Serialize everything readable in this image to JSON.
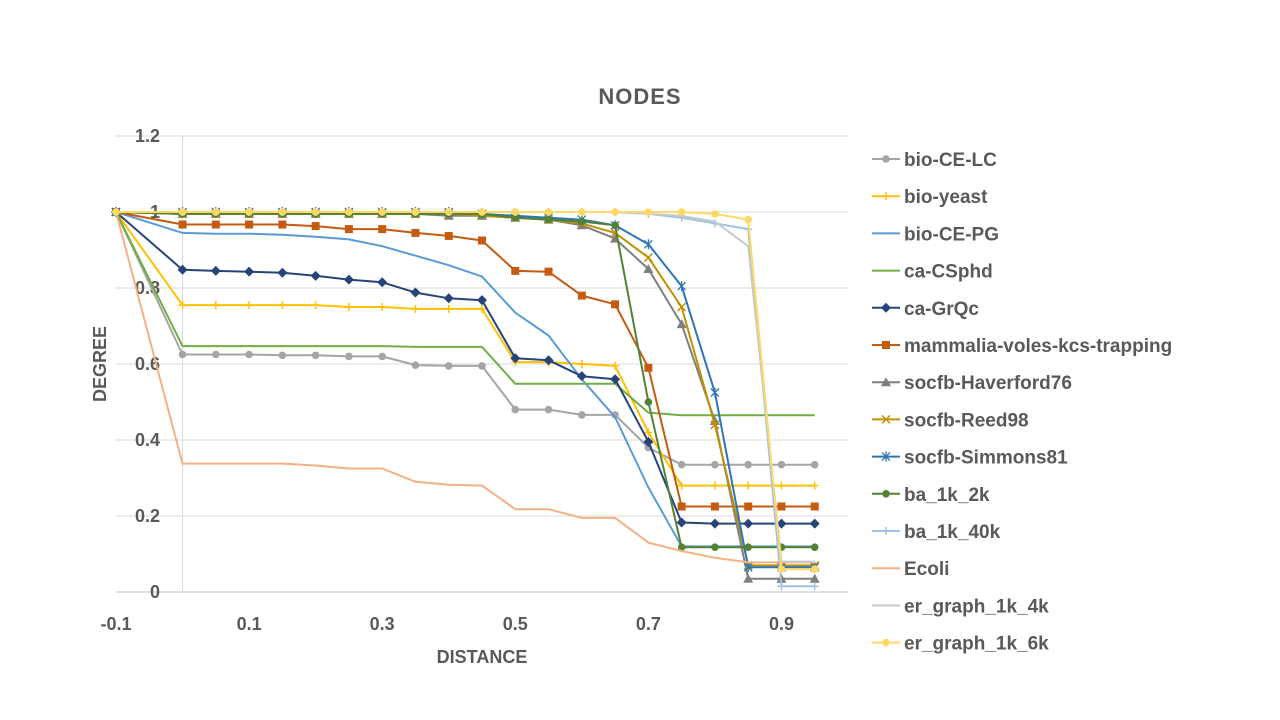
{
  "chart_data": {
    "type": "line",
    "title": "NODES",
    "xlabel": "DISTANCE",
    "ylabel": "DEGREE",
    "xlim": [
      -0.1,
      1.0
    ],
    "ylim": [
      0,
      1.2
    ],
    "x_ticks": [
      -0.1,
      0.1,
      0.3,
      0.5,
      0.7,
      0.9
    ],
    "x_tick_labels": [
      "-0.1",
      "0.1",
      "0.3",
      "0.5",
      "0.7",
      "0.9"
    ],
    "y_ticks": [
      0,
      0.2,
      0.4,
      0.6,
      0.8,
      1,
      1.2
    ],
    "y_tick_labels": [
      "0",
      "0.2",
      "0.4",
      "0.6",
      "0.8",
      "1",
      "1.2"
    ],
    "grid": "horizontal",
    "legend_position": "right",
    "x": [
      -0.1,
      0,
      0.05,
      0.1,
      0.15,
      0.2,
      0.25,
      0.3,
      0.35,
      0.4,
      0.45,
      0.5,
      0.55,
      0.6,
      0.65,
      0.7,
      0.75,
      0.8,
      0.85,
      0.9,
      0.95
    ],
    "series": [
      {
        "name": "bio-CE-LC",
        "color": "#a5a5a5",
        "marker": "circle",
        "values": [
          1,
          0.625,
          0.625,
          0.625,
          0.623,
          0.623,
          0.62,
          0.62,
          0.597,
          0.595,
          0.595,
          0.48,
          0.48,
          0.466,
          0.466,
          0.38,
          0.335,
          0.335,
          0.335,
          0.335,
          0.335
        ]
      },
      {
        "name": "bio-yeast",
        "color": "#ffc000",
        "marker": "plus",
        "values": [
          1,
          0.755,
          0.755,
          0.755,
          0.755,
          0.755,
          0.75,
          0.75,
          0.745,
          0.745,
          0.745,
          0.605,
          0.605,
          0.6,
          0.595,
          0.42,
          0.28,
          0.28,
          0.28,
          0.28,
          0.28
        ]
      },
      {
        "name": "bio-CE-PG",
        "color": "#5b9bd5",
        "marker": "none",
        "values": [
          1,
          0.945,
          0.943,
          0.943,
          0.94,
          0.935,
          0.928,
          0.91,
          0.885,
          0.86,
          0.83,
          0.735,
          0.675,
          0.56,
          0.46,
          0.275,
          0.12,
          0.12,
          0.12,
          0.12,
          0.12
        ]
      },
      {
        "name": "ca-CSphd",
        "color": "#70ad47",
        "marker": "none",
        "values": [
          1,
          0.647,
          0.647,
          0.647,
          0.647,
          0.647,
          0.647,
          0.647,
          0.645,
          0.645,
          0.645,
          0.548,
          0.548,
          0.548,
          0.548,
          0.472,
          0.465,
          0.465,
          0.465,
          0.465,
          0.465
        ]
      },
      {
        "name": "ca-GrQc",
        "color": "#264478",
        "marker": "diamond",
        "values": [
          1,
          0.848,
          0.845,
          0.843,
          0.84,
          0.832,
          0.822,
          0.815,
          0.788,
          0.773,
          0.768,
          0.615,
          0.61,
          0.568,
          0.56,
          0.395,
          0.183,
          0.18,
          0.18,
          0.18,
          0.18
        ]
      },
      {
        "name": "mammalia-voles-kcs-trapping",
        "color": "#c55a11",
        "marker": "square",
        "values": [
          1,
          0.967,
          0.967,
          0.967,
          0.967,
          0.963,
          0.955,
          0.955,
          0.945,
          0.937,
          0.925,
          0.845,
          0.843,
          0.78,
          0.757,
          0.59,
          0.225,
          0.225,
          0.225,
          0.225,
          0.225
        ]
      },
      {
        "name": "socfb-Haverford76",
        "color": "#7f7f7f",
        "marker": "triangle",
        "values": [
          1,
          0.995,
          0.995,
          0.995,
          0.995,
          0.995,
          0.995,
          0.995,
          0.995,
          0.99,
          0.99,
          0.985,
          0.98,
          0.965,
          0.93,
          0.85,
          0.705,
          0.45,
          0.035,
          0.035,
          0.035
        ]
      },
      {
        "name": "socfb-Reed98",
        "color": "#bf9000",
        "marker": "x",
        "values": [
          1,
          0.995,
          0.995,
          0.995,
          0.995,
          0.995,
          0.995,
          0.995,
          0.995,
          0.995,
          0.99,
          0.985,
          0.98,
          0.97,
          0.945,
          0.88,
          0.75,
          0.44,
          0.07,
          0.07,
          0.07
        ]
      },
      {
        "name": "socfb-Simmons81",
        "color": "#2e75b6",
        "marker": "star",
        "values": [
          1,
          1,
          1,
          1,
          1,
          1,
          1,
          1,
          1,
          1,
          0.995,
          0.99,
          0.985,
          0.98,
          0.965,
          0.915,
          0.805,
          0.525,
          0.065,
          0.065,
          0.065
        ]
      },
      {
        "name": "ba_1k_2k",
        "color": "#548235",
        "marker": "circle",
        "values": [
          1,
          0.995,
          0.995,
          0.995,
          0.995,
          0.995,
          0.995,
          0.995,
          0.995,
          0.995,
          0.995,
          0.985,
          0.98,
          0.975,
          0.965,
          0.5,
          0.118,
          0.118,
          0.118,
          0.118,
          0.118
        ]
      },
      {
        "name": "ba_1k_40k",
        "color": "#9dc3e6",
        "marker": "plus",
        "values": [
          1,
          1,
          1,
          1,
          1,
          1,
          1,
          1,
          1,
          1,
          1,
          1,
          1,
          1,
          1,
          0.995,
          0.985,
          0.97,
          0.955,
          0.015,
          0.015
        ]
      },
      {
        "name": "Ecoli",
        "color": "#f4b183",
        "marker": "none",
        "values": [
          1,
          0.338,
          0.338,
          0.338,
          0.338,
          0.333,
          0.325,
          0.325,
          0.29,
          0.282,
          0.28,
          0.218,
          0.218,
          0.195,
          0.195,
          0.13,
          0.108,
          0.09,
          0.078,
          0.078,
          0.078
        ]
      },
      {
        "name": "er_graph_1k_4k",
        "color": "#c9c9c9",
        "marker": "none",
        "values": [
          1,
          1,
          1,
          1,
          1,
          1,
          1,
          1,
          1,
          1,
          1,
          1,
          1,
          1,
          1,
          0.995,
          0.99,
          0.975,
          0.91,
          0.08,
          0.08
        ]
      },
      {
        "name": "er_graph_1k_6k",
        "color": "#ffd966",
        "marker": "circle",
        "values": [
          1,
          1,
          1,
          1,
          1,
          1,
          1,
          1,
          1,
          1,
          1,
          1,
          1,
          1,
          1,
          1,
          1,
          0.995,
          0.98,
          0.06,
          0.06
        ]
      }
    ]
  }
}
